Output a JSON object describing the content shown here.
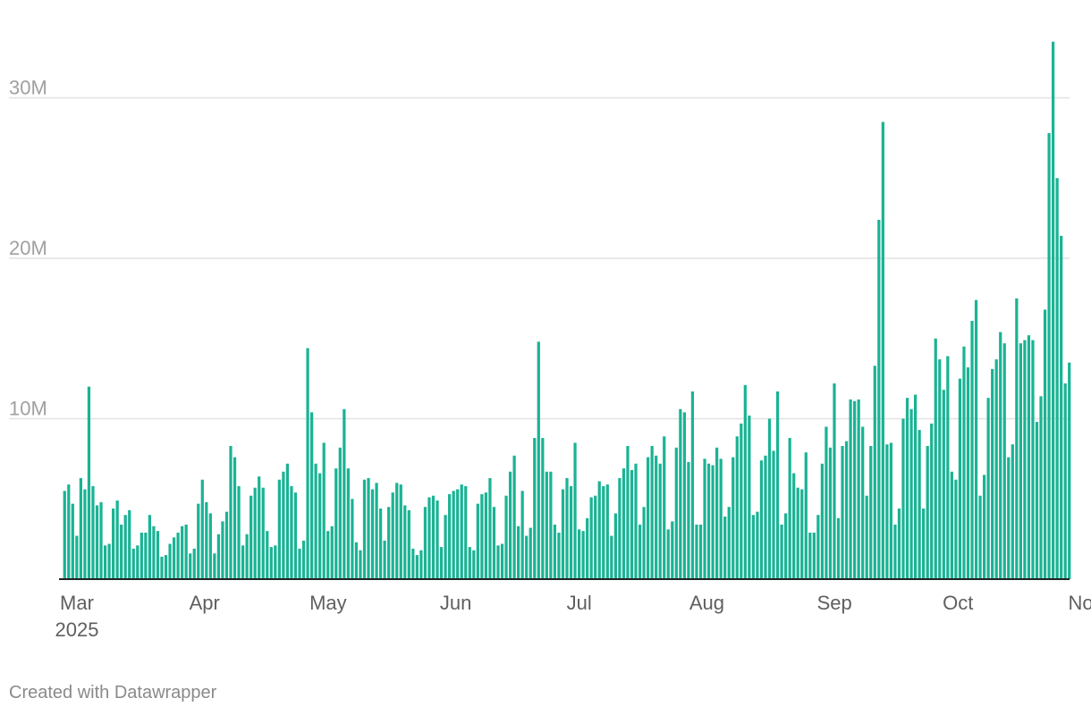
{
  "chart_data": {
    "type": "bar",
    "x_start": "2025-03-01",
    "x_end": "2025-11-01",
    "yticks": [
      {
        "value": 10000000,
        "label": "10M"
      },
      {
        "value": 20000000,
        "label": "20M"
      },
      {
        "value": 30000000,
        "label": "30M"
      }
    ],
    "xticks": [
      {
        "date": "2025-03-01",
        "label": "Mar",
        "sublabel": "2025"
      },
      {
        "date": "2025-04-01",
        "label": "Apr"
      },
      {
        "date": "2025-05-01",
        "label": "May"
      },
      {
        "date": "2025-06-01",
        "label": "Jun"
      },
      {
        "date": "2025-07-01",
        "label": "Jul"
      },
      {
        "date": "2025-08-01",
        "label": "Aug"
      },
      {
        "date": "2025-09-01",
        "label": "Sep"
      },
      {
        "date": "2025-10-01",
        "label": "Oct"
      },
      {
        "date": "2025-11-01",
        "label": "Nov"
      }
    ],
    "ylim": [
      0,
      33500000
    ],
    "grid": true,
    "bar_color": "#1ab394",
    "values": [
      5500000,
      5900000,
      4700000,
      2700000,
      6300000,
      5600000,
      12000000,
      5800000,
      4600000,
      4800000,
      2100000,
      2200000,
      4400000,
      4900000,
      3400000,
      4000000,
      4300000,
      1900000,
      2100000,
      2900000,
      2900000,
      4000000,
      3300000,
      3000000,
      1400000,
      1500000,
      2200000,
      2600000,
      2900000,
      3300000,
      3400000,
      1600000,
      1900000,
      4700000,
      6200000,
      4800000,
      4100000,
      1600000,
      2800000,
      3600000,
      4200000,
      8300000,
      7600000,
      5800000,
      2100000,
      2800000,
      5200000,
      5700000,
      6400000,
      5700000,
      3000000,
      2000000,
      2100000,
      6200000,
      6700000,
      7200000,
      5800000,
      5400000,
      1900000,
      2400000,
      14400000,
      10400000,
      7200000,
      6600000,
      8500000,
      3000000,
      3300000,
      6900000,
      8200000,
      10600000,
      6900000,
      5000000,
      2300000,
      1800000,
      6200000,
      6300000,
      5600000,
      6000000,
      4400000,
      2400000,
      4500000,
      5400000,
      6000000,
      5900000,
      4600000,
      4300000,
      1900000,
      1500000,
      1800000,
      4500000,
      5100000,
      5200000,
      4900000,
      2000000,
      4000000,
      5300000,
      5500000,
      5600000,
      5900000,
      5800000,
      2000000,
      1800000,
      4700000,
      5300000,
      5400000,
      6300000,
      4500000,
      2100000,
      2200000,
      5200000,
      6700000,
      7700000,
      3300000,
      5500000,
      2700000,
      3200000,
      8800000,
      14800000,
      8800000,
      6700000,
      6700000,
      3400000,
      2900000,
      5600000,
      6300000,
      5800000,
      8500000,
      3100000,
      3000000,
      3800000,
      5100000,
      5200000,
      6100000,
      5800000,
      5900000,
      2700000,
      4100000,
      6300000,
      6900000,
      8300000,
      6800000,
      7200000,
      3400000,
      4500000,
      7600000,
      8300000,
      7700000,
      7200000,
      8900000,
      3100000,
      3600000,
      8200000,
      10600000,
      10400000,
      7300000,
      11700000,
      3400000,
      3400000,
      7500000,
      7200000,
      7100000,
      8200000,
      7500000,
      3900000,
      4500000,
      7600000,
      8900000,
      9700000,
      12100000,
      10200000,
      4000000,
      4200000,
      7400000,
      7700000,
      10000000,
      8000000,
      11700000,
      3400000,
      4100000,
      8800000,
      6600000,
      5700000,
      5600000,
      7900000,
      2900000,
      2900000,
      4000000,
      7200000,
      9500000,
      8200000,
      12200000,
      3800000,
      8300000,
      8600000,
      11200000,
      11100000,
      11200000,
      9500000,
      5200000,
      8300000,
      13300000,
      22400000,
      28500000,
      8400000,
      8500000,
      3400000,
      4400000,
      10000000,
      11300000,
      10600000,
      11500000,
      9300000,
      4400000,
      8300000,
      9700000,
      15000000,
      13700000,
      11800000,
      13900000,
      6700000,
      6200000,
      12500000,
      14500000,
      13200000,
      16100000,
      17400000,
      5200000,
      6500000,
      11300000,
      13100000,
      13700000,
      15400000,
      14700000,
      7600000,
      8400000,
      17500000,
      14700000,
      14900000,
      15200000,
      14900000,
      9800000,
      11400000,
      16800000,
      27800000,
      33500000,
      25000000,
      21400000,
      12200000,
      13500000
    ]
  },
  "footer": {
    "credit": "Created with Datawrapper"
  }
}
